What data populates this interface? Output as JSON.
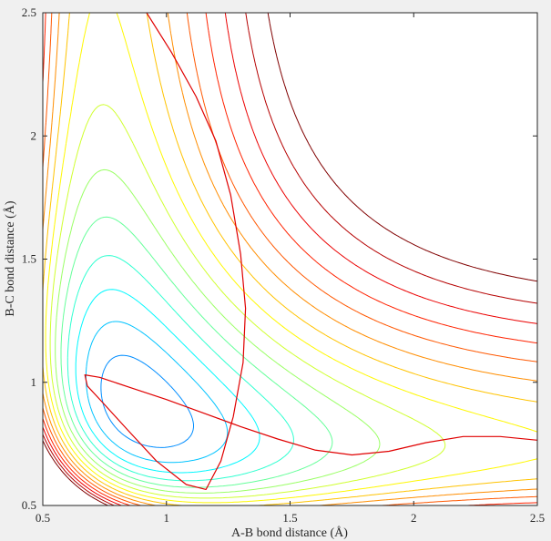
{
  "chart_data": {
    "type": "contour",
    "title": "",
    "xlabel": "A-B bond distance (Å)",
    "ylabel": "B-C bond distance (Å)",
    "xlim": [
      0.5,
      2.5
    ],
    "ylim": [
      0.5,
      2.5
    ],
    "xticks": [
      "0.5",
      "1",
      "1.5",
      "2",
      "2.5"
    ],
    "yticks": [
      "0.5",
      "1",
      "1.5",
      "2",
      "2.5"
    ],
    "grid": false,
    "colormap": "jet",
    "contour_levels": 20,
    "surface": {
      "form": "LEPS-like A+BC collinear potential",
      "well_depth": 1.0,
      "equilibrium_distance": 0.74,
      "morse_a": 1.9,
      "repulsive_A": 0.6,
      "repulsive_range": 0.35
    },
    "trajectory": {
      "color": "#e00000",
      "points": [
        [
          0.92,
          2.5
        ],
        [
          1.02,
          2.34
        ],
        [
          1.12,
          2.16
        ],
        [
          1.2,
          1.98
        ],
        [
          1.26,
          1.76
        ],
        [
          1.3,
          1.52
        ],
        [
          1.32,
          1.3
        ],
        [
          1.31,
          1.08
        ],
        [
          1.27,
          0.86
        ],
        [
          1.22,
          0.68
        ],
        [
          1.16,
          0.565
        ],
        [
          1.08,
          0.585
        ],
        [
          0.96,
          0.68
        ],
        [
          0.84,
          0.81
        ],
        [
          0.74,
          0.92
        ],
        [
          0.68,
          0.985
        ],
        [
          0.67,
          1.03
        ],
        [
          0.73,
          1.02
        ],
        [
          0.85,
          0.98
        ],
        [
          1.0,
          0.93
        ],
        [
          1.15,
          0.875
        ],
        [
          1.3,
          0.82
        ],
        [
          1.45,
          0.77
        ],
        [
          1.6,
          0.725
        ],
        [
          1.75,
          0.705
        ],
        [
          1.9,
          0.72
        ],
        [
          2.05,
          0.755
        ],
        [
          2.2,
          0.78
        ],
        [
          2.35,
          0.78
        ],
        [
          2.5,
          0.765
        ]
      ]
    }
  }
}
